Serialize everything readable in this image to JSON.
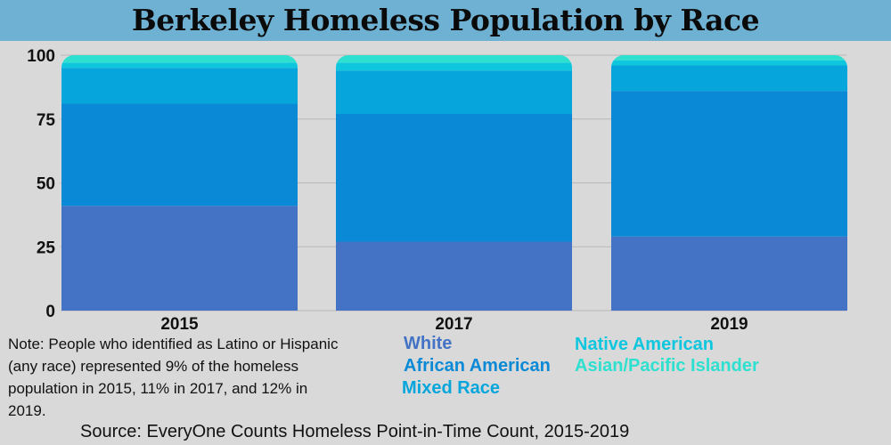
{
  "title": "Berkeley Homeless Population by Race",
  "chart_data": {
    "type": "bar",
    "stacked": true,
    "categories": [
      "2015",
      "2017",
      "2019"
    ],
    "series": [
      {
        "name": "White",
        "color": "#4472c4",
        "values": [
          41,
          27,
          29
        ]
      },
      {
        "name": "African American",
        "color": "#0a8ad6",
        "values": [
          40,
          50,
          57
        ]
      },
      {
        "name": "Mixed Race",
        "color": "#06a6dc",
        "values": [
          14,
          17,
          10
        ]
      },
      {
        "name": "Native American",
        "color": "#0fc6df",
        "values": [
          2,
          3,
          2
        ]
      },
      {
        "name": "Asian/Pacific Islander",
        "color": "#2ee0cf",
        "values": [
          3,
          3,
          2
        ]
      }
    ],
    "ylim": [
      0,
      100
    ],
    "yticks": [
      0,
      25,
      50,
      75,
      100
    ],
    "grid": true
  },
  "legend": {
    "items": [
      {
        "label": "White",
        "color": "#4472c4"
      },
      {
        "label": "African American",
        "color": "#0a8ad6"
      },
      {
        "label": "Mixed Race",
        "color": "#06a6dc"
      },
      {
        "label": "Native American",
        "color": "#0fc6df"
      },
      {
        "label": "Asian/Pacific Islander",
        "color": "#2ee0cf"
      }
    ]
  },
  "note": "Note: People who identified as Latino or Hispanic (any race) represented 9% of the homeless population in 2015, 11% in 2017, and 12% in 2019.",
  "source": "Source: EveryOne Counts Homeless Point-in-Time Count, 2015-2019"
}
